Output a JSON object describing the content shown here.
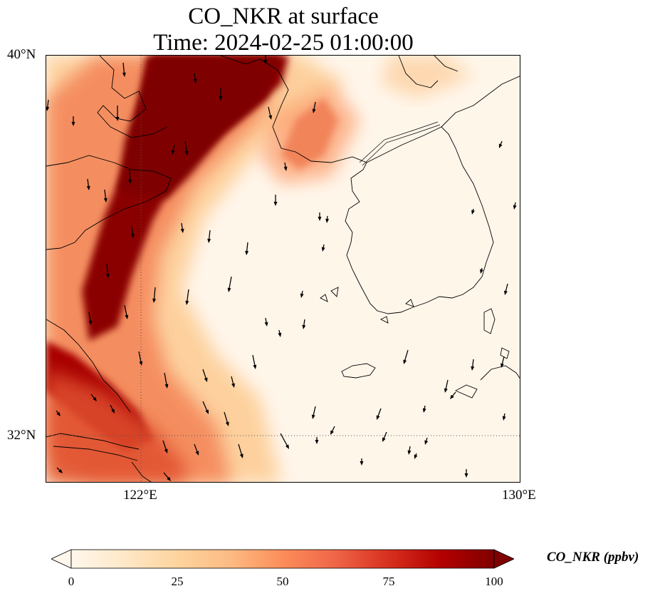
{
  "title": {
    "line1": "CO_NKR at surface",
    "line2": "Time: 2024-02-25 01:00:00"
  },
  "axes": {
    "lat_ticks": [
      {
        "label": "40°N",
        "value": 40
      },
      {
        "label": "32°N",
        "value": 32
      }
    ],
    "lon_ticks": [
      {
        "label": "122°E",
        "value": 122
      },
      {
        "label": "130°E",
        "value": 130
      }
    ],
    "gridlines": "dotted",
    "extent": {
      "lon_min": 120,
      "lon_max": 130,
      "lat_min": 31,
      "lat_max": 40
    }
  },
  "colorbar": {
    "label": "CO_NKR (ppbv)",
    "ticks": [
      "0",
      "25",
      "50",
      "75",
      "100"
    ],
    "min": 0,
    "max": 100,
    "extend": "both",
    "colormap": [
      "#fff7ec",
      "#fee8c8",
      "#fdd49e",
      "#fdbb84",
      "#fc8d59",
      "#ef6548",
      "#d7301f",
      "#b30000",
      "#7f0000"
    ]
  },
  "plume_colors": {
    "high": "#7f0000",
    "mid": "#d7301f",
    "low": "#fdbb84",
    "background": "#fff6ea"
  },
  "vector_color": "#000000",
  "coastline_color": "#000000"
}
